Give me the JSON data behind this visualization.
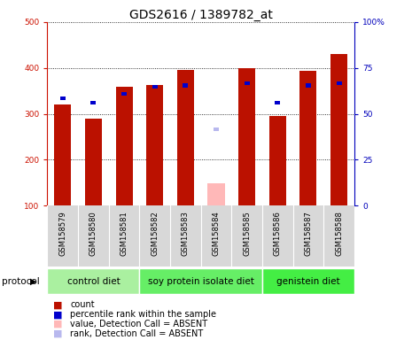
{
  "title": "GDS2616 / 1389782_at",
  "samples": [
    "GSM158579",
    "GSM158580",
    "GSM158581",
    "GSM158582",
    "GSM158583",
    "GSM158584",
    "GSM158585",
    "GSM158586",
    "GSM158587",
    "GSM158588"
  ],
  "red_values": [
    320,
    290,
    360,
    362,
    395,
    null,
    400,
    295,
    393,
    430
  ],
  "blue_values": [
    330,
    320,
    340,
    355,
    358,
    null,
    362,
    320,
    358,
    362
  ],
  "pink_value": 148,
  "pink_index": 5,
  "lavender_value": 262,
  "lavender_index": 5,
  "ylim_left": [
    100,
    500
  ],
  "ylim_right": [
    0,
    100
  ],
  "y_ticks_left": [
    100,
    200,
    300,
    400,
    500
  ],
  "y_ticks_right": [
    0,
    25,
    50,
    75,
    100
  ],
  "y_tick_labels_right": [
    "0",
    "25",
    "50",
    "75",
    "100%"
  ],
  "bar_width": 0.55,
  "red_color": "#bb1100",
  "blue_color": "#0000cc",
  "pink_color": "#ffb8b8",
  "lavender_color": "#b8b8ee",
  "bg_color": "#d8d8d8",
  "plot_bg": "#ffffff",
  "left_axis_color": "#cc1100",
  "right_axis_color": "#0000bb",
  "title_fontsize": 10,
  "tick_fontsize": 6.5,
  "sample_fontsize": 6.0,
  "proto_fontsize": 7.5,
  "legend_fontsize": 7.0,
  "proto_groups": [
    {
      "label": "control diet",
      "start": 0,
      "end": 3,
      "color": "#aaf0a0"
    },
    {
      "label": "soy protein isolate diet",
      "start": 3,
      "end": 7,
      "color": "#66ee66"
    },
    {
      "label": "genistein diet",
      "start": 7,
      "end": 10,
      "color": "#44ee44"
    }
  ]
}
